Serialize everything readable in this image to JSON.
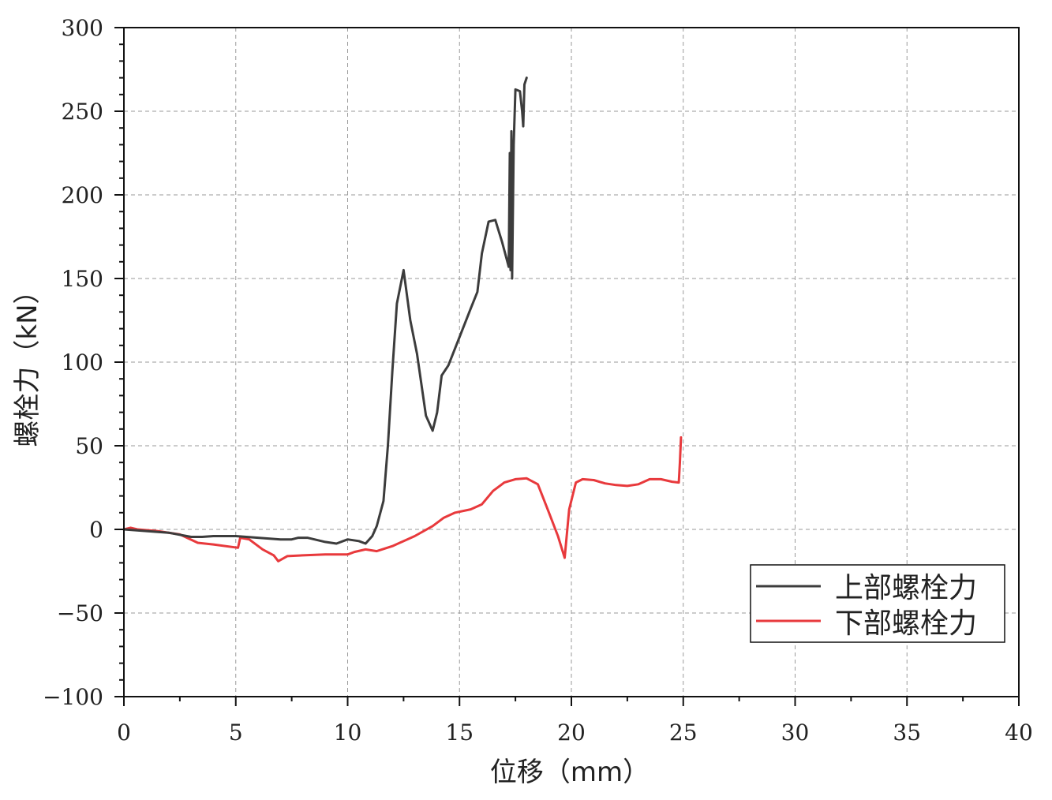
{
  "chart_data": {
    "type": "line",
    "xlabel": "位移（mm）",
    "ylabel": "螺栓力（kN）",
    "xlim": [
      0,
      40
    ],
    "ylim": [
      -100,
      300
    ],
    "x_ticks": [
      0,
      5,
      10,
      15,
      20,
      25,
      30,
      35,
      40
    ],
    "y_ticks": [
      -100,
      -50,
      0,
      50,
      100,
      150,
      200,
      250,
      300
    ],
    "x_tick_labels": [
      "0",
      "5",
      "10",
      "15",
      "20",
      "25",
      "30",
      "35",
      "40"
    ],
    "y_tick_labels": [
      "−100",
      "−50",
      "0",
      "50",
      "100",
      "150",
      "200",
      "250",
      "300"
    ],
    "grid": true,
    "legend_position": "bottom-right",
    "series": [
      {
        "name": "上部螺栓力",
        "color": "#3c3c3c",
        "points": [
          [
            0,
            0
          ],
          [
            1,
            -1
          ],
          [
            2,
            -2
          ],
          [
            3,
            -4.5
          ],
          [
            3.5,
            -4.5
          ],
          [
            4,
            -4
          ],
          [
            5,
            -4
          ],
          [
            6,
            -5
          ],
          [
            7,
            -6
          ],
          [
            7.5,
            -6
          ],
          [
            7.8,
            -5
          ],
          [
            8.2,
            -5
          ],
          [
            9,
            -7.5
          ],
          [
            9.5,
            -8.5
          ],
          [
            10,
            -6
          ],
          [
            10.5,
            -7
          ],
          [
            10.8,
            -8.5
          ],
          [
            11.1,
            -4
          ],
          [
            11.3,
            2
          ],
          [
            11.6,
            17
          ],
          [
            11.8,
            50
          ],
          [
            12,
            95
          ],
          [
            12.2,
            135
          ],
          [
            12.5,
            155
          ],
          [
            12.8,
            125
          ],
          [
            13.1,
            105
          ],
          [
            13.5,
            68
          ],
          [
            13.8,
            59
          ],
          [
            14,
            70
          ],
          [
            14.2,
            92
          ],
          [
            14.5,
            98
          ],
          [
            15,
            115
          ],
          [
            15.5,
            132
          ],
          [
            15.8,
            142
          ],
          [
            16,
            165
          ],
          [
            16.3,
            184
          ],
          [
            16.6,
            185
          ],
          [
            16.9,
            172
          ],
          [
            17.1,
            162
          ],
          [
            17.2,
            157
          ],
          [
            17.25,
            225
          ],
          [
            17.28,
            155
          ],
          [
            17.32,
            238
          ],
          [
            17.35,
            150
          ],
          [
            17.42,
            230
          ],
          [
            17.5,
            263
          ],
          [
            17.7,
            262
          ],
          [
            17.8,
            250
          ],
          [
            17.85,
            241
          ],
          [
            17.9,
            266
          ],
          [
            18,
            270
          ]
        ]
      },
      {
        "name": "下部螺栓力",
        "color": "#e8393c",
        "points": [
          [
            0,
            0
          ],
          [
            0.3,
            1
          ],
          [
            0.6,
            0
          ],
          [
            1.5,
            -1
          ],
          [
            2.5,
            -3
          ],
          [
            3.3,
            -8
          ],
          [
            4,
            -9
          ],
          [
            5.1,
            -11
          ],
          [
            5.2,
            -5
          ],
          [
            5.6,
            -6
          ],
          [
            6.2,
            -12
          ],
          [
            6.7,
            -15.5
          ],
          [
            6.9,
            -19
          ],
          [
            7.3,
            -16
          ],
          [
            8,
            -15.5
          ],
          [
            9,
            -15
          ],
          [
            10,
            -15
          ],
          [
            10.3,
            -13.5
          ],
          [
            10.8,
            -12
          ],
          [
            11.3,
            -13
          ],
          [
            12,
            -10
          ],
          [
            13,
            -4
          ],
          [
            13.8,
            2
          ],
          [
            14.3,
            7
          ],
          [
            14.8,
            10
          ],
          [
            15.5,
            12
          ],
          [
            16,
            15
          ],
          [
            16.5,
            23
          ],
          [
            17,
            28
          ],
          [
            17.5,
            30
          ],
          [
            18,
            30.5
          ],
          [
            18.5,
            27
          ],
          [
            19,
            10
          ],
          [
            19.4,
            -4
          ],
          [
            19.7,
            -17
          ],
          [
            19.9,
            12
          ],
          [
            20.2,
            28
          ],
          [
            20.5,
            30
          ],
          [
            21,
            29.5
          ],
          [
            21.5,
            27.5
          ],
          [
            22,
            26.5
          ],
          [
            22.5,
            26
          ],
          [
            23,
            27
          ],
          [
            23.5,
            30
          ],
          [
            24,
            30
          ],
          [
            24.5,
            28.5
          ],
          [
            24.8,
            28
          ],
          [
            24.85,
            40
          ],
          [
            24.9,
            55
          ]
        ]
      }
    ]
  }
}
